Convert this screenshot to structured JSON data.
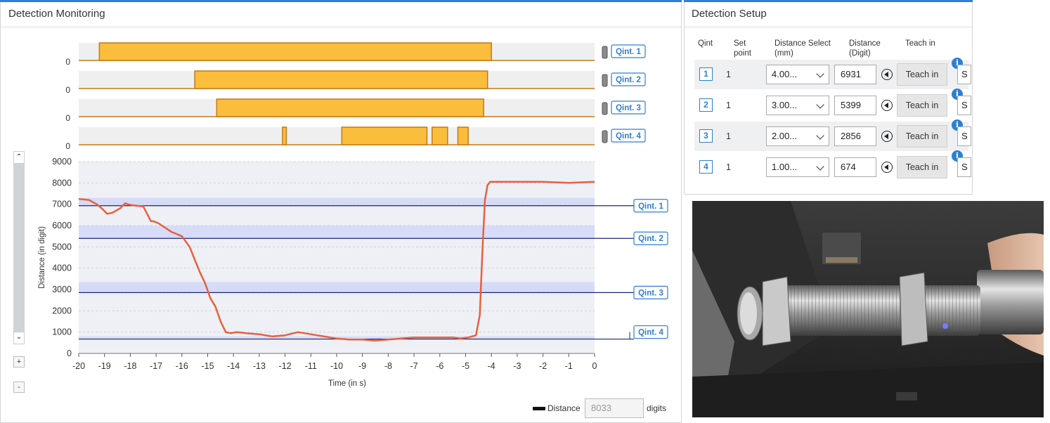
{
  "monitoring": {
    "title": "Detection Monitoring",
    "legend_label": "Distance",
    "current_value": "8033",
    "unit": "digits",
    "zoom_in_label": "+",
    "zoom_out_label": "-",
    "scroll_up": "^",
    "scroll_down": "v"
  },
  "setup": {
    "title": "Detection Setup",
    "headers": {
      "qint": "Qint",
      "set_point_1": "Set",
      "set_point_2": "point",
      "distance_select_1": "Distance Select",
      "distance_select_2": "(mm)",
      "distance_1": "Distance",
      "distance_2": "(Digit)",
      "teach_in": "Teach in"
    },
    "rows": [
      {
        "qint": "1",
        "set_point": "1",
        "distance_select": "4.00...",
        "distance": "6931",
        "teach_label": "Teach in",
        "info": "i",
        "extra": "S"
      },
      {
        "qint": "2",
        "set_point": "1",
        "distance_select": "3.00...",
        "distance": "5399",
        "teach_label": "Teach in",
        "info": "i",
        "extra": "S"
      },
      {
        "qint": "3",
        "set_point": "1",
        "distance_select": "2.00...",
        "distance": "2856",
        "teach_label": "Teach in",
        "info": "i",
        "extra": "S"
      },
      {
        "qint": "4",
        "set_point": "1",
        "distance_select": "1.00...",
        "distance": "674",
        "teach_label": "Teach in",
        "info": "i",
        "extra": "S"
      }
    ]
  },
  "chart_data": {
    "type": "line",
    "xlabel": "Time (in s)",
    "ylabel": "Distance (in digit)",
    "xlim": [
      -20,
      0
    ],
    "ylim": [
      0,
      9000
    ],
    "x_ticks": [
      -20,
      -19,
      -18,
      -17,
      -16,
      -15,
      -14,
      -13,
      -12,
      -11,
      -10,
      -9,
      -8,
      -7,
      -6,
      -5,
      -4,
      -3,
      -2,
      -1,
      0
    ],
    "y_ticks": [
      0,
      1000,
      2000,
      3000,
      4000,
      5000,
      6000,
      7000,
      8000,
      9000
    ],
    "grid": true,
    "legend_position": "bottom-right",
    "series": [
      {
        "name": "Distance",
        "color": "#e8603a",
        "x": [
          -20,
          -19.6,
          -19.3,
          -19.1,
          -18.9,
          -18.7,
          -18.4,
          -18.2,
          -18.1,
          -17.9,
          -17.5,
          -17.2,
          -17.1,
          -16.9,
          -16.4,
          -16.2,
          -16.0,
          -15.7,
          -15.5,
          -15.3,
          -15.1,
          -14.9,
          -14.7,
          -14.5,
          -14.3,
          -14.1,
          -13.9,
          -13.7,
          -13.5,
          -13.0,
          -12.5,
          -12.0,
          -11.5,
          -11.0,
          -10.5,
          -10.0,
          -9.5,
          -9.0,
          -8.5,
          -8.0,
          -7.5,
          -7.0,
          -6.0,
          -5.5,
          -5.2,
          -4.9,
          -4.6,
          -4.45,
          -4.35,
          -4.25,
          -4.15,
          -4.05,
          -3.9,
          -3.7,
          -3.0,
          -2.0,
          -1.0,
          0
        ],
        "y": [
          7250,
          7200,
          7000,
          6800,
          6550,
          6600,
          6800,
          7050,
          7000,
          6950,
          6900,
          6200,
          6200,
          6100,
          5700,
          5600,
          5500,
          5000,
          4400,
          3800,
          3300,
          2600,
          2200,
          1500,
          1000,
          950,
          1000,
          980,
          950,
          900,
          800,
          850,
          1000,
          900,
          800,
          700,
          650,
          650,
          600,
          650,
          700,
          750,
          750,
          750,
          700,
          750,
          850,
          1800,
          4800,
          7200,
          7900,
          8050,
          8050,
          8050,
          8050,
          8050,
          8000,
          8050
        ]
      }
    ],
    "thresholds": [
      {
        "name": "Qint. 1",
        "value": 6931,
        "band": [
          6931,
          7300
        ]
      },
      {
        "name": "Qint. 2",
        "value": 5399,
        "band": [
          5399,
          6000
        ]
      },
      {
        "name": "Qint. 3",
        "value": 2856,
        "band": [
          2856,
          3350
        ]
      },
      {
        "name": "Qint. 4",
        "value": 674,
        "band": [
          674,
          800
        ]
      }
    ],
    "digital_tracks": [
      {
        "name": "Qint. 1",
        "baseline_label": "0",
        "high_intervals": [
          [
            -19.2,
            -4.0
          ]
        ]
      },
      {
        "name": "Qint. 2",
        "baseline_label": "0",
        "high_intervals": [
          [
            -15.5,
            -4.15
          ]
        ]
      },
      {
        "name": "Qint. 3",
        "baseline_label": "0",
        "high_intervals": [
          [
            -14.65,
            -4.3
          ]
        ]
      },
      {
        "name": "Qint. 4",
        "baseline_label": "0",
        "high_intervals": [
          [
            -12.1,
            -11.95
          ],
          [
            -9.8,
            -6.5
          ],
          [
            -6.3,
            -5.7
          ],
          [
            -5.3,
            -4.9
          ]
        ]
      }
    ]
  },
  "colors": {
    "accent": "#2d7fd3",
    "signal_fill": "#fbbd3c",
    "signal_line": "#c07a1a",
    "band": "#d6dbf8",
    "threshold_line": "#1a2680"
  }
}
